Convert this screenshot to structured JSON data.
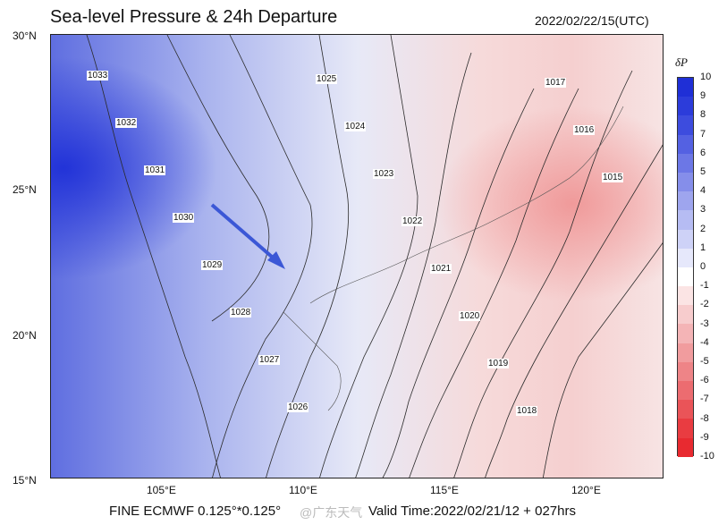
{
  "header": {
    "title": "Sea-level Pressure & 24h Departure",
    "valid_time": "2022/02/22/15(UTC)"
  },
  "lat_labels": [
    "30°N",
    "25°N",
    "20°N",
    "15°N"
  ],
  "lon_labels": [
    "105°E",
    "110°E",
    "115°E",
    "120°E"
  ],
  "colorbar": {
    "title": "δP",
    "labels": [
      "10",
      "9",
      "8",
      "7",
      "6",
      "5",
      "4",
      "3",
      "2",
      "1",
      "0",
      "-1",
      "-2",
      "-3",
      "-4",
      "-5",
      "-6",
      "-7",
      "-8",
      "-9",
      "-10"
    ]
  },
  "contour_labels": [
    "1033",
    "1032",
    "1031",
    "1030",
    "1029",
    "1028",
    "1027",
    "1026",
    "1025",
    "1024",
    "1023",
    "1022",
    "1021",
    "1020",
    "1019",
    "1018",
    "1017",
    "1016",
    "1015"
  ],
  "footer": {
    "model": "FINE ECMWF 0.125°*0.125°",
    "valid": "Valid Time:2022/02/21/12 + 027hrs",
    "watermark": "@广东天气"
  },
  "colors": {
    "high": "#1f2fd6",
    "neutral": "#ffffff",
    "low": "#e8202a"
  }
}
